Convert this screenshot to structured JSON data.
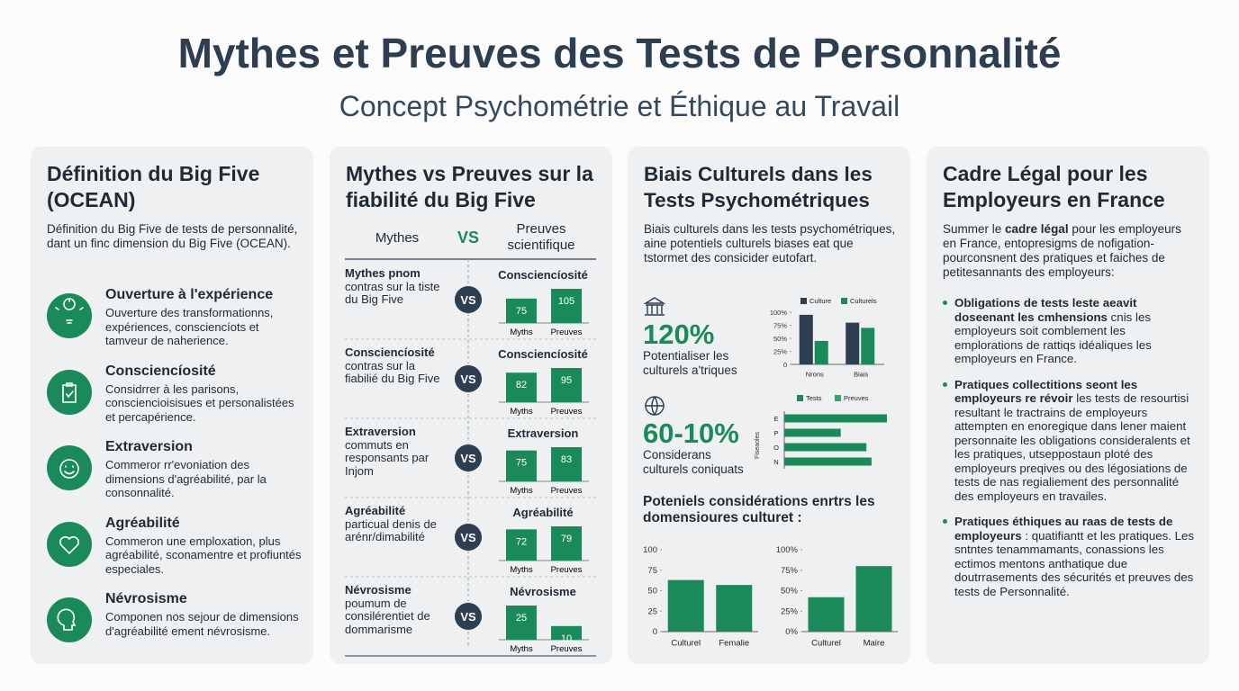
{
  "header": {
    "title": "Mythes et Preuves des Tests de Personnalité",
    "subtitle": "Concept Psychométrie et Éthique au Travail"
  },
  "panels": [
    {
      "title": "Définition du Big Five (OCEAN)",
      "intro": "Définition du Big Five de tests de personnalité, dant un finc dimension du Big Five (OCEAN).",
      "traits": [
        {
          "label": "Ouverture à l'expérience",
          "text": "Ouverture des transformationns, expériences, consciencíots et tamveur de naherience."
        },
        {
          "label": "Consciencíosité",
          "text": "Considrrer à les parisons, consciencioisisues et personalistées et percapérience."
        },
        {
          "label": "Extraversion",
          "text": "Commeror rr'evoniation des dimensions d'agréabilité, par la consonnalité."
        },
        {
          "label": "Agréabilité",
          "text": "Commeron une emploxation, plus agréabilité, sconamentre et profiuntés especiales."
        },
        {
          "label": "Névrosisme",
          "text": "Componen nos sejour de dimensions d'agréabilité ement névrosisme."
        }
      ]
    },
    {
      "title": "Mythes vs Preuves sur la fiabilité du Big Five",
      "head_myths": "Mythes",
      "head_vs": "VS",
      "head_proofs": "Preuves scientifique",
      "color": "#1b8a5a",
      "rows": [
        {
          "myth_head": "Mythes pnom",
          "myth_text": "contras sur la tiste du Big Five",
          "badge": "VS",
          "title": "Consciencíosité",
          "categories": [
            "Myths",
            "Preuves"
          ],
          "values": [
            75,
            105
          ]
        },
        {
          "myth_head": "Consciencíosité",
          "myth_text": "contras sur la fiabilié du Big Five",
          "badge": "VS",
          "title": "Consciencíosité",
          "categories": [
            "Myths",
            "Preuves"
          ],
          "values": [
            82,
            95
          ]
        },
        {
          "myth_head": "Extraversion",
          "myth_text": "commuts en responsants par Injom",
          "badge": "VS",
          "title": "Extraversion",
          "categories": [
            "Myths",
            "Preuves"
          ],
          "values": [
            75,
            83
          ]
        },
        {
          "myth_head": "Agréabilité",
          "myth_text": "particual denis de arénr/dimabilité",
          "badge": "VS",
          "title": "Agréabilité",
          "categories": [
            "Myths",
            "Preuves"
          ],
          "values": [
            72,
            79
          ]
        },
        {
          "myth_head": "Névrosisme",
          "myth_text": "poumum de consilérentiet de dommarisme",
          "badge": "VS",
          "title": "Névrosisme",
          "categories": [
            "Myths",
            "Preuves"
          ],
          "values": [
            25,
            10
          ]
        }
      ]
    },
    {
      "title": "Biais Culturels dans les Tests Psychométriques",
      "intro": "Biais culturels dans les tests psychométriques, aine potentiels culturels biases eat que tstormet des consicider eutofart.",
      "stats": [
        {
          "value": "120%",
          "text": "Potentialiser les culturels a'triques"
        },
        {
          "value": "60-10%",
          "text": "Considerans culturels coniquats"
        }
      ],
      "chart_a": {
        "type": "bar",
        "categories": [
          "Nrons",
          "Biais"
        ],
        "series": [
          {
            "name": "Culture",
            "color": "#2c3e50",
            "values": [
              95,
              80
            ]
          },
          {
            "name": "Culturels",
            "color": "#1b8a5a",
            "values": [
              45,
              70
            ]
          }
        ],
        "ylim": [
          0,
          100
        ],
        "yticks": [
          0,
          {
            "value": 25,
            "label": "25%"
          },
          {
            "value": 50,
            "label": "50%"
          },
          {
            "value": 75,
            "label": "75%"
          },
          {
            "value": 100,
            "label": "100%"
          }
        ]
      },
      "chart_b": {
        "type": "barh",
        "axis_label": "Fiseaoles",
        "categories": [
          "E",
          "P",
          "O",
          "N"
        ],
        "legend": [
          {
            "name": "Tests",
            "color": "#1b8a5a"
          },
          {
            "name": "Preuves",
            "color": "#2aa86e"
          }
        ],
        "values": [
          100,
          55,
          80,
          85
        ],
        "color": "#1b8a5a",
        "xlim": [
          0,
          100
        ]
      },
      "subheading": "Poteniels considérations enrtrs les domensioures culturet :",
      "charts_bottom": [
        {
          "type": "bar",
          "categories": [
            "Culturel",
            "Femalie"
          ],
          "values": [
            63,
            57
          ],
          "color": "#1b8a5a",
          "ylim": [
            0,
            100
          ],
          "yticks": [
            0,
            25,
            50,
            75,
            100
          ]
        },
        {
          "type": "bar",
          "categories": [
            "Culturel",
            "Maire"
          ],
          "values": [
            42,
            80
          ],
          "color": "#1b8a5a",
          "ylim": [
            0,
            100
          ],
          "yticks": [
            {
              "value": 0,
              "label": "0%"
            },
            {
              "value": 25,
              "label": "25%"
            },
            {
              "value": 50,
              "label": "50%"
            },
            {
              "value": 75,
              "label": "75%"
            },
            {
              "value": 100,
              "label": "100%"
            }
          ]
        }
      ]
    },
    {
      "title": "Cadre Légal pour les Employeurs en France",
      "intro": {
        "before": "Summer le ",
        "bold": "cadre légal",
        "after": " pour les employeurs en France, entopresigms de nofigation-pourconsnent des pratiques et faiches de petitesannants des employeurs:"
      },
      "bullets": [
        {
          "bold": "Obligations de tests leste aeavit doseenant les cmhensions",
          "text": " cnis les employeurs soit comblement les emplorations de rattiqs idéaliques les employeurs en France."
        },
        {
          "bold": "Pratiques collectitions seont les employeurs re révoir",
          "text": " les tests de resourtisi resultant le tractrains de employeurs attempten en enoregique dans lener maient personnaite les obligations consideralents et les pratiques, utseppostaun ploté des employeurs preqives ou des légosiations de tests de nas regialiement des personnalité des employeurs en travailes."
        },
        {
          "bold": "Pratiques éthiques au raas de tests de employeurs",
          "text": " : quatifiantt et les pratiques. Les sntntes tenammamants, conassions les ectimos mentons anthatique due doutrrasements des sécurités et preuves des tests de Personnalité."
        }
      ]
    }
  ]
}
